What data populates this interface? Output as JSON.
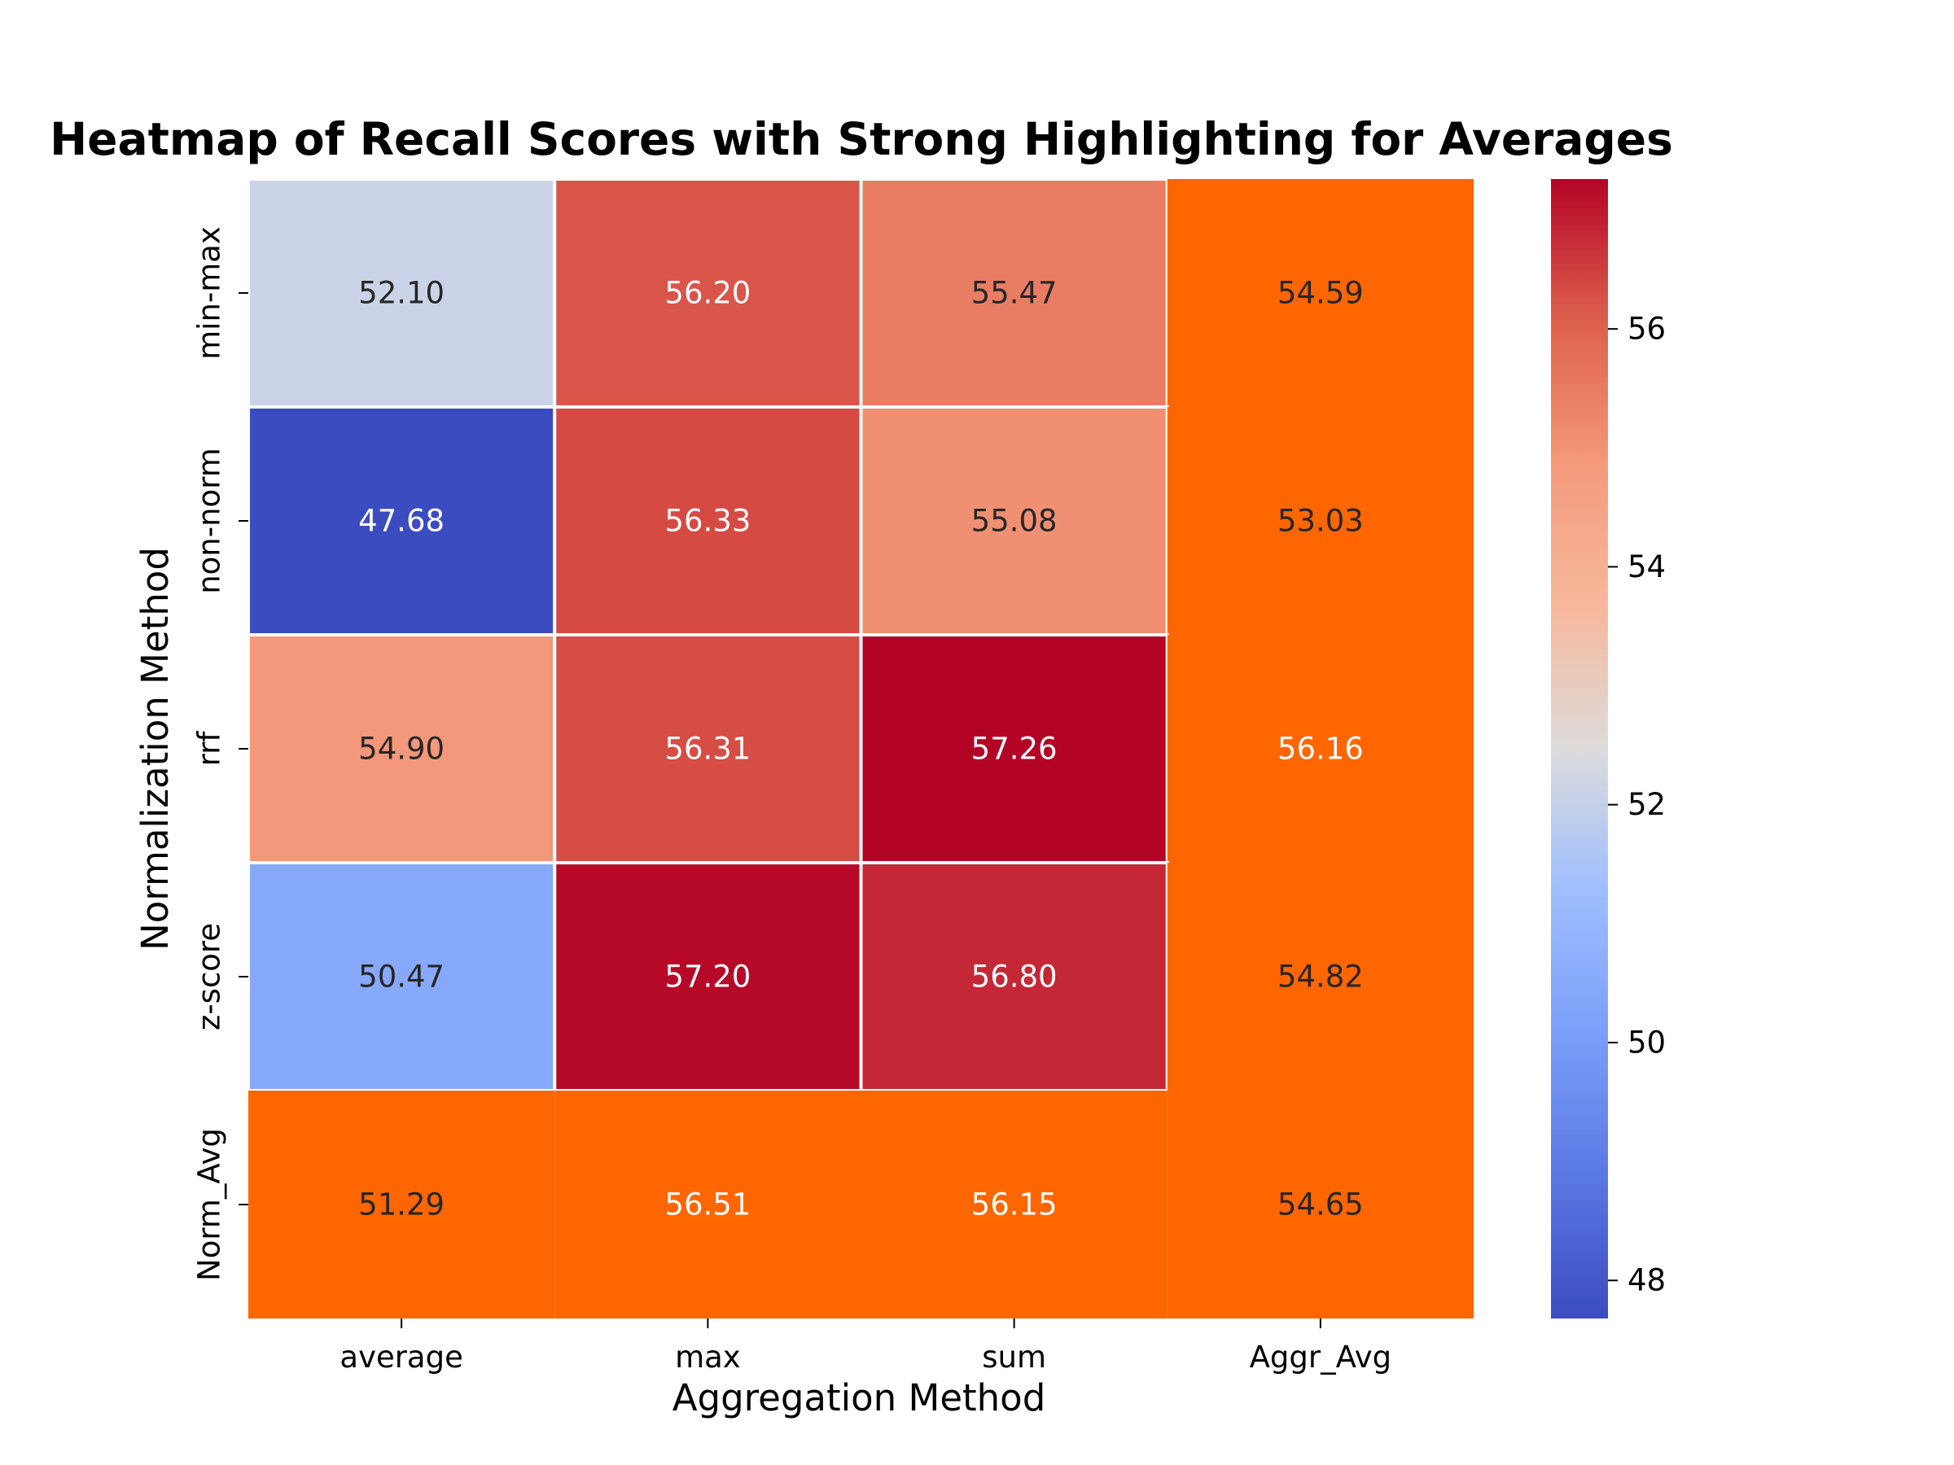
{
  "chart_data": {
    "type": "heatmap",
    "title": "Heatmap of Recall Scores with Strong Highlighting for Averages",
    "xlabel": "Aggregation Method",
    "ylabel": "Normalization Method",
    "columns": [
      "average",
      "max",
      "sum",
      "Aggr_Avg"
    ],
    "rows": [
      "min-max",
      "non-norm",
      "rrf",
      "z-score",
      "Norm_Avg"
    ],
    "values": [
      [
        52.1,
        56.2,
        55.47,
        54.59
      ],
      [
        47.68,
        56.33,
        55.08,
        53.03
      ],
      [
        54.9,
        56.31,
        57.26,
        56.16
      ],
      [
        50.47,
        57.2,
        56.8,
        54.82
      ],
      [
        51.29,
        56.51,
        56.15,
        54.65
      ]
    ],
    "labels": [
      [
        "52.10",
        "56.20",
        "55.47",
        "54.59"
      ],
      [
        "47.68",
        "56.33",
        "55.08",
        "53.03"
      ],
      [
        "54.90",
        "56.31",
        "57.26",
        "56.16"
      ],
      [
        "50.47",
        "57.20",
        "56.80",
        "54.82"
      ],
      [
        "51.29",
        "56.51",
        "56.15",
        "54.65"
      ]
    ],
    "colormap": "coolwarm",
    "vmin": 47.68,
    "vmax": 57.26,
    "highlight": {
      "color": "#ff6600",
      "rows": [
        "Norm_Avg"
      ],
      "columns": [
        "Aggr_Avg"
      ]
    },
    "colorbar": {
      "ticks": [
        48,
        50,
        52,
        54,
        56
      ],
      "tick_labels": [
        "48",
        "50",
        "52",
        "54",
        "56"
      ]
    }
  }
}
